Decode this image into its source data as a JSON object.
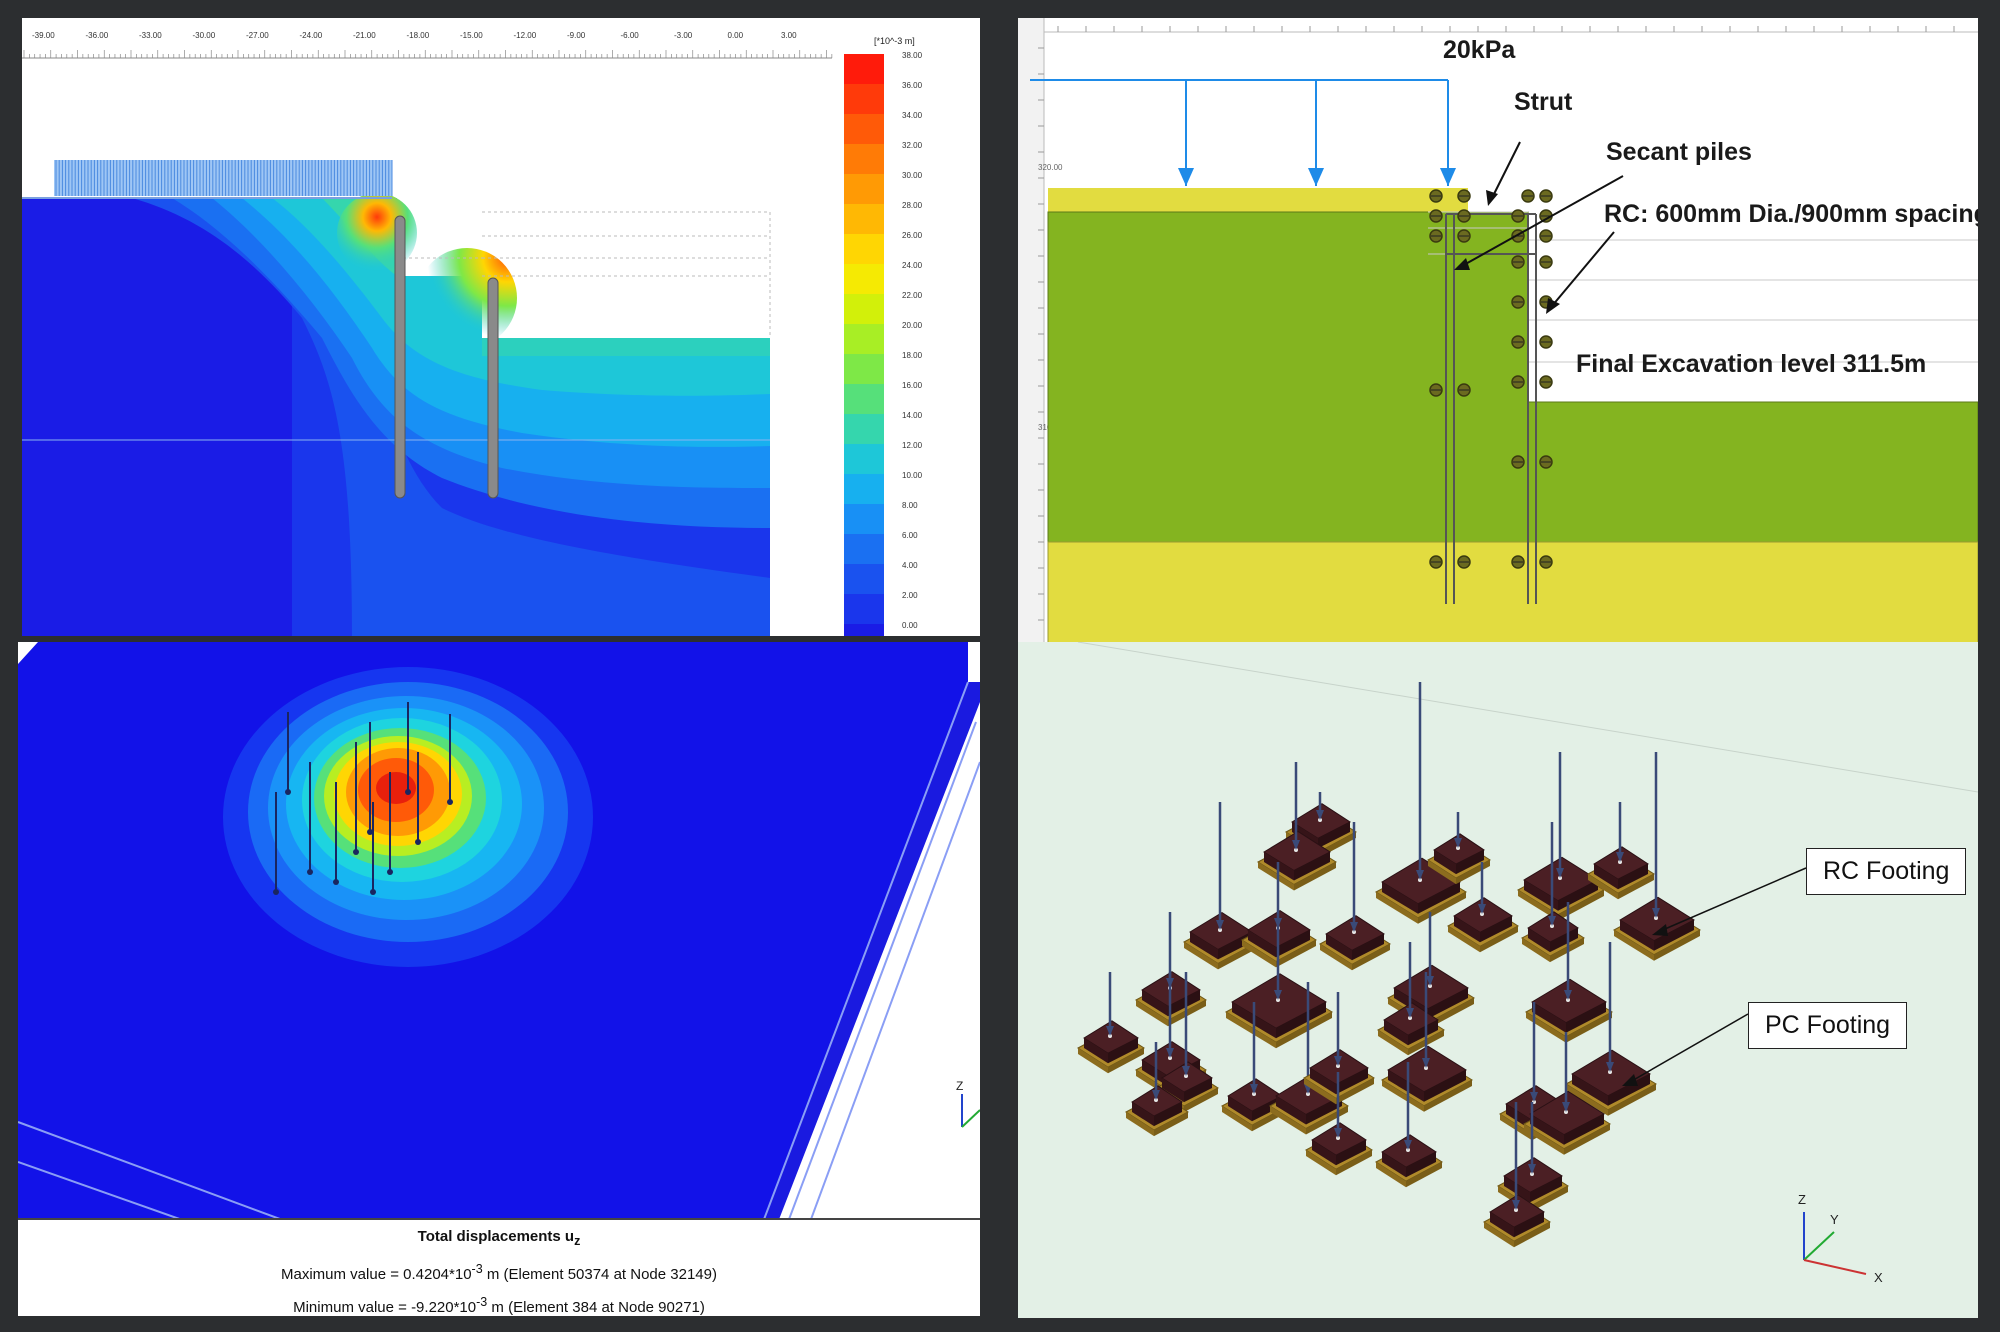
{
  "top_left": {
    "ruler_ticks": [
      "-39.00",
      "-36.00",
      "-33.00",
      "-30.00",
      "-27.00",
      "-24.00",
      "-21.00",
      "-18.00",
      "-15.00",
      "-12.00",
      "-9.00",
      "-6.00",
      "-3.00",
      "0.00",
      "3.00"
    ],
    "legend_unit": "[*10^-3 m]",
    "legend_values": [
      "38.00",
      "36.00",
      "34.00",
      "32.00",
      "30.00",
      "28.00",
      "26.00",
      "24.00",
      "22.00",
      "20.00",
      "18.00",
      "16.00",
      "14.00",
      "12.00",
      "10.00",
      "8.00",
      "6.00",
      "4.00",
      "2.00",
      "0.00"
    ],
    "legend_colors": [
      "#ff1b0b",
      "#ff3a0a",
      "#ff5a08",
      "#ff7b06",
      "#ff9a05",
      "#ffb804",
      "#ffd603",
      "#f5ea03",
      "#d2f00a",
      "#a8ee25",
      "#7ee847",
      "#56e07a",
      "#35d6ad",
      "#1ec7d8",
      "#17b0ef",
      "#1890f5",
      "#1a70f2",
      "#1a52ef",
      "#1a36ec",
      "#1a1ce6"
    ]
  },
  "top_right": {
    "load_label": "20kPa",
    "strut_label": "Strut",
    "secant_label": "Secant piles",
    "rc_label": "RC: 600mm Dia./900mm spacing",
    "excavation_label": "Final Excavation level 311.5m",
    "ruler_labels": [
      "320.00",
      "310.00"
    ],
    "colors": {
      "clay": "#84b420",
      "sand": "#e2dc40",
      "load": "#1e8be8"
    }
  },
  "bottom_left": {
    "caption_title": "Total displacements u",
    "caption_sub": "z",
    "max_line": {
      "prefix": "Maximum value = 0.4204*10",
      "exp": "-3",
      "suffix": " m (Element 50374 at Node 32149)"
    },
    "min_line": {
      "prefix": "Minimum value = -9.220*10",
      "exp": "-3",
      "suffix": " m (Element 384 at Node 90271)"
    },
    "axis_z": "Z"
  },
  "bottom_right": {
    "rc_footing_label": "RC Footing",
    "pc_footing_label": "PC Footing",
    "axis": {
      "z": "Z",
      "y": "Y",
      "x": "X"
    },
    "colors": {
      "rc": "#4b1f24",
      "pc": "#b08a2a",
      "column": "#3a4a78"
    }
  }
}
